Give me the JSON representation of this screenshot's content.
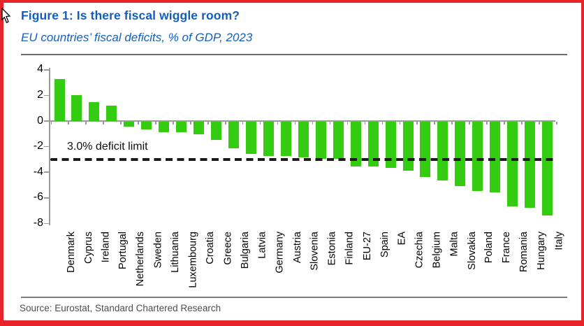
{
  "header": {
    "title": "Figure 1: Is there fiscal wiggle room?",
    "subtitle": "EU countries’ fiscal deficits, % of GDP, 2023"
  },
  "chart_data": {
    "type": "bar",
    "title": "Figure 1: Is there fiscal wiggle room?",
    "subtitle": "EU countries’ fiscal deficits, % of GDP, 2023",
    "xlabel": "",
    "ylabel": "% of GDP",
    "ylim": [
      -8,
      4
    ],
    "yticks": [
      4,
      2,
      0,
      -2,
      -4,
      -6,
      -8
    ],
    "grid": false,
    "legend": false,
    "bar_color": "#33cc11",
    "categories": [
      "Denmark",
      "Cyprus",
      "Ireland",
      "Portugal",
      "Netherlands",
      "Sweden",
      "Lithuania",
      "Luxembourg",
      "Croatia",
      "Greece",
      "Bulgaria",
      "Latvia",
      "Germany",
      "Austria",
      "Slovenia",
      "Estonia",
      "Finland",
      "EU-27",
      "Spain",
      "EA",
      "Czechia",
      "Belgium",
      "Malta",
      "Slovakia",
      "Poland",
      "France",
      "Romania",
      "Hungary",
      "Italy"
    ],
    "values": [
      3.3,
      2.0,
      1.5,
      1.2,
      -0.4,
      -0.6,
      -0.8,
      -0.8,
      -1.0,
      -1.4,
      -2.1,
      -2.5,
      -2.7,
      -2.7,
      -2.8,
      -2.9,
      -2.9,
      -3.5,
      -3.5,
      -3.6,
      -3.8,
      -4.3,
      -4.6,
      -5.0,
      -5.4,
      -5.5,
      -6.6,
      -6.7,
      -7.3
    ],
    "reference_line": {
      "value": -3.0,
      "label": "3.0% deficit limit",
      "style": "dashed",
      "color": "#1b1b1b"
    }
  },
  "footer": {
    "source": "Source: Eurostat, Standard Chartered Research"
  },
  "icons": {
    "cursor": "mouse-cursor-icon"
  },
  "colors": {
    "title_blue": "#135fbd",
    "bar_green": "#33cc11",
    "frame_red": "#e8242b",
    "axis_gray": "#9a9a9a",
    "source_gray": "#4d4d4d"
  }
}
